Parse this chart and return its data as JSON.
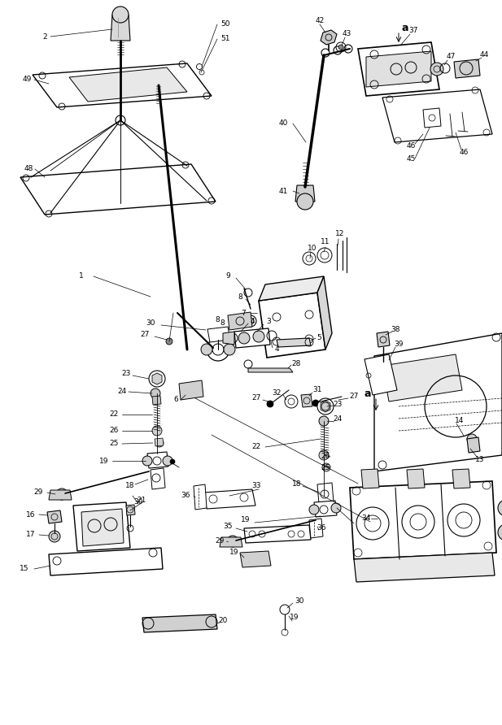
{
  "background_color": "#ffffff",
  "fig_width": 6.17,
  "fig_height": 8.92,
  "dpi": 100
}
